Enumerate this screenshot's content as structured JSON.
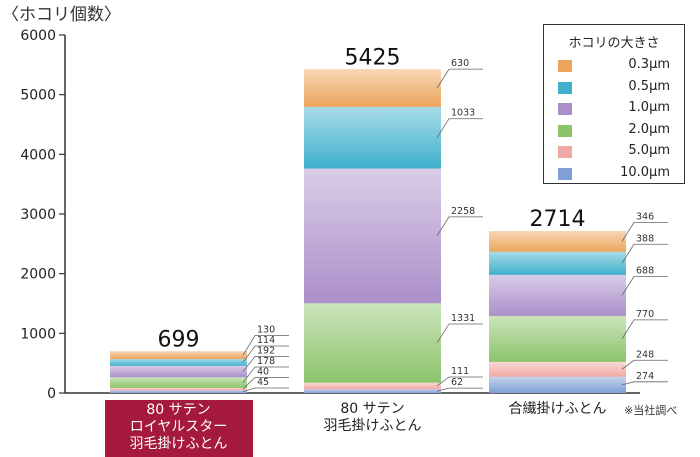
{
  "unit_label": "〈ホコリ個数〉",
  "note": "※当社調べ",
  "legend_title": "ホコリの大きさ",
  "chart_data": {
    "type": "bar",
    "stacked": true,
    "ylim": [
      0,
      6000
    ],
    "yticks": [
      0,
      1000,
      2000,
      3000,
      4000,
      5000,
      6000
    ],
    "ytick_labels": [
      "0",
      "1000",
      "2000",
      "3000",
      "4000",
      "5000",
      "6000"
    ],
    "categories": [
      {
        "lines": [
          "80 サテン",
          "ロイヤルスター",
          "羽毛掛けふとん"
        ],
        "highlight": true,
        "total_label": "699"
      },
      {
        "lines": [
          "80 サテン",
          "羽毛掛けふとん"
        ],
        "highlight": false,
        "total_label": "5425"
      },
      {
        "lines": [
          "合繊掛けふとん"
        ],
        "highlight": false,
        "total_label": "2714"
      }
    ],
    "series": [
      {
        "name": "10.0μm",
        "color": "#7f9fd6",
        "values": [
          45,
          62,
          274
        ],
        "labels": [
          "45",
          "62",
          "274"
        ]
      },
      {
        "name": "5.0μm",
        "color": "#f2a9a4",
        "values": [
          40,
          111,
          248
        ],
        "labels": [
          "40",
          "111",
          "248"
        ]
      },
      {
        "name": "2.0μm",
        "color": "#8cc46a",
        "values": [
          178,
          1331,
          770
        ],
        "labels": [
          "178",
          "1331",
          "770"
        ]
      },
      {
        "name": "1.0μm",
        "color": "#ab8fc9",
        "values": [
          192,
          2258,
          688
        ],
        "labels": [
          "192",
          "2258",
          "688"
        ]
      },
      {
        "name": "0.5μm",
        "color": "#3fb0cc",
        "values": [
          114,
          1033,
          388
        ],
        "labels": [
          "114",
          "1033",
          "388"
        ]
      },
      {
        "name": "0.3μm",
        "color": "#eda55c",
        "values": [
          130,
          630,
          346
        ],
        "labels": [
          "130",
          "630",
          "346"
        ]
      }
    ],
    "legend": [
      {
        "name": "0.3μm",
        "color": "#eda55c"
      },
      {
        "name": "0.5μm",
        "color": "#3fb0cc"
      },
      {
        "name": "1.0μm",
        "color": "#ab8fc9"
      },
      {
        "name": "2.0μm",
        "color": "#8cc46a"
      },
      {
        "name": "5.0μm",
        "color": "#f2a9a4"
      },
      {
        "name": "10.0μm",
        "color": "#7f9fd6"
      }
    ],
    "legend_placement": "top-right",
    "grid": false
  }
}
